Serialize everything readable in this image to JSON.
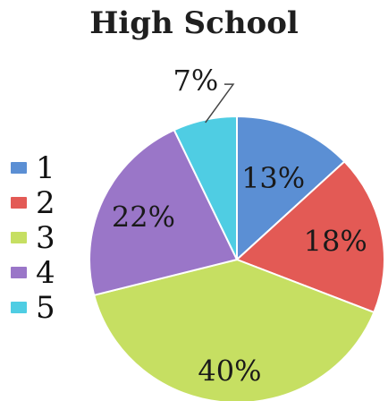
{
  "chart_data": {
    "type": "pie",
    "title": "High School",
    "categories": [
      "1",
      "2",
      "3",
      "4",
      "5"
    ],
    "values": [
      13,
      18,
      40,
      22,
      7
    ],
    "labels": [
      "13%",
      "18%",
      "40%",
      "22%",
      "7%"
    ],
    "colors": [
      "#5b8fd4",
      "#e35a55",
      "#c6df62",
      "#9a76c8",
      "#4fcde3"
    ],
    "legend_position": "left"
  }
}
